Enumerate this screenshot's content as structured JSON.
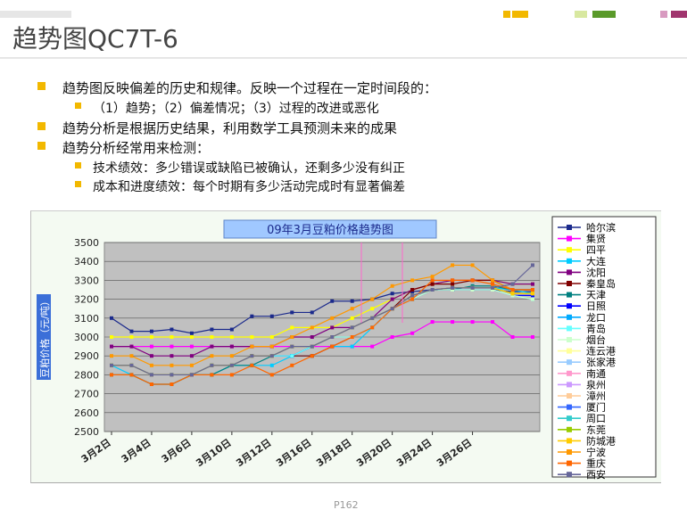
{
  "slide": {
    "title": "趋势图QC7T-6",
    "bullets": [
      {
        "text": "趋势图反映偏差的历史和规律。反映一个过程在一定时间段的：",
        "sub": [
          "（1）趋势；（2）偏差情况；（3）过程的改进或恶化"
        ]
      },
      {
        "text": "趋势分析是根据历史结果，利用数学工具预测未来的成果",
        "sub": []
      },
      {
        "text": "趋势分析经常用来检测：",
        "sub": [
          "技术绩效：多少错误或缺陷已被确认，还剩多少没有纠正",
          "成本和进度绩效：每个时期有多少活动完成时有显著偏差"
        ]
      }
    ],
    "page_label": "P162",
    "accent_colors": [
      "#f2b800",
      "#8cc63f",
      "#a0356e"
    ]
  },
  "chart_data": {
    "type": "line",
    "title": "09年3月豆粕价格趋势图",
    "ylabel": "豆粕价格（元/吨）",
    "xlabel": "",
    "ylim": [
      2500,
      3500
    ],
    "yticks": [
      2500,
      2600,
      2700,
      2800,
      2900,
      3000,
      3100,
      3200,
      3300,
      3400,
      3500
    ],
    "grid": true,
    "legend_position": "right",
    "x_tick_labels": [
      "3月2日",
      "3月4日",
      "3月6日",
      "3月10日",
      "3月12日",
      "3月16日",
      "3月18日",
      "3月20日",
      "3月24日",
      "3月26日"
    ],
    "x_tick_index": [
      0,
      2,
      4,
      6,
      8,
      10,
      12,
      14,
      16,
      18
    ],
    "series": [
      {
        "name": "哈尔滨",
        "color": "#1b2a8c",
        "values": [
          3100,
          3030,
          3030,
          3040,
          3020,
          3040,
          3040,
          3110,
          3110,
          3130,
          3130,
          3190,
          3190,
          3200,
          3230,
          3240,
          3250,
          3250,
          3250,
          3250,
          3240,
          3240
        ]
      },
      {
        "name": "集贤",
        "color": "#ff00ff",
        "values": [
          2950,
          2950,
          2950,
          2950,
          2950,
          2950,
          2950,
          2950,
          2950,
          2950,
          2950,
          2950,
          2950,
          2950,
          3000,
          3020,
          3080,
          3080,
          3080,
          3080,
          3000,
          3000
        ]
      },
      {
        "name": "四平",
        "color": "#ffff00",
        "values": [
          3000,
          3000,
          3000,
          3000,
          3000,
          3000,
          3000,
          3000,
          3000,
          3050,
          3050,
          3050,
          3100,
          3150,
          3200,
          3250,
          3280,
          3300,
          3300,
          3300,
          3280,
          3280
        ]
      },
      {
        "name": "大连",
        "color": "#00ccff",
        "values": [
          2850,
          2800,
          2750,
          2750,
          2800,
          2800,
          2850,
          2850,
          2850,
          2900,
          2900,
          2950,
          2950,
          3050,
          3150,
          3200,
          3250,
          3260,
          3260,
          3260,
          3250,
          3230
        ]
      },
      {
        "name": "沈阳",
        "color": "#800080",
        "values": [
          2950,
          2950,
          2900,
          2900,
          2900,
          2950,
          2950,
          2950,
          2950,
          3000,
          3000,
          3050,
          3050,
          3100,
          3200,
          3250,
          3280,
          3300,
          3300,
          3300,
          3280,
          3280
        ]
      },
      {
        "name": "秦皇岛",
        "color": "#800000",
        "values": [
          2850,
          2850,
          2800,
          2800,
          2800,
          2850,
          2850,
          2900,
          2900,
          2900,
          2900,
          2950,
          3000,
          3050,
          3150,
          3250,
          3280,
          3280,
          3300,
          3300,
          3250,
          3250
        ]
      },
      {
        "name": "天津",
        "color": "#008080",
        "values": [
          2800,
          2800,
          2750,
          2750,
          2800,
          2800,
          2850,
          2850,
          2900,
          2900,
          2950,
          3000,
          3000,
          3050,
          3150,
          3200,
          3250,
          3250,
          3270,
          3270,
          3250,
          3250
        ]
      },
      {
        "name": "日照",
        "color": "#0000ff",
        "values": [
          2850,
          2850,
          2800,
          2800,
          2800,
          2850,
          2850,
          2900,
          2900,
          2900,
          2950,
          3000,
          3000,
          3050,
          3150,
          3200,
          3250,
          3250,
          3250,
          3250,
          3220,
          3220
        ]
      },
      {
        "name": "龙口",
        "color": "#00aaff",
        "values": [
          2850,
          2850,
          2800,
          2800,
          2800,
          2850,
          2850,
          2900,
          2900,
          2900,
          2950,
          3000,
          3000,
          3050,
          3150,
          3200,
          3250,
          3250,
          3250,
          3250,
          3220,
          3200
        ]
      },
      {
        "name": "青岛",
        "color": "#66ffff",
        "values": [
          2850,
          2850,
          2800,
          2800,
          2800,
          2850,
          2850,
          2900,
          2900,
          2900,
          2950,
          3000,
          3000,
          3050,
          3150,
          3200,
          3250,
          3250,
          3250,
          3250,
          3220,
          3200
        ]
      },
      {
        "name": "烟台",
        "color": "#ccffcc",
        "values": [
          2850,
          2850,
          2800,
          2800,
          2800,
          2850,
          2850,
          2900,
          2900,
          2950,
          2950,
          3000,
          3000,
          3050,
          3150,
          3200,
          3250,
          3250,
          3250,
          3250,
          3220,
          3200
        ]
      },
      {
        "name": "连云港",
        "color": "#ffff99",
        "values": [
          2850,
          2850,
          2800,
          2800,
          2800,
          2850,
          2850,
          2900,
          2900,
          2950,
          2950,
          3000,
          3050,
          3100,
          3150,
          3220,
          3250,
          3260,
          3260,
          3260,
          3230,
          3230
        ]
      },
      {
        "name": "张家港",
        "color": "#99ccff",
        "values": [
          2850,
          2850,
          2800,
          2800,
          2800,
          2850,
          2850,
          2900,
          2900,
          2950,
          2950,
          3000,
          3050,
          3100,
          3150,
          3220,
          3250,
          3260,
          3260,
          3260,
          3230,
          3230
        ]
      },
      {
        "name": "南通",
        "color": "#ff99cc",
        "values": [
          2850,
          2850,
          2800,
          2800,
          2800,
          2850,
          2850,
          2900,
          2900,
          2950,
          2950,
          3000,
          3050,
          3100,
          3150,
          3220,
          3250,
          3260,
          3260,
          3260,
          3230,
          3230
        ]
      },
      {
        "name": "泉州",
        "color": "#cc99ff",
        "values": [
          2850,
          2850,
          2800,
          2800,
          2800,
          2850,
          2850,
          2900,
          2900,
          2950,
          2950,
          3000,
          3050,
          3100,
          3150,
          3220,
          3250,
          3260,
          3260,
          3260,
          3230,
          3230
        ]
      },
      {
        "name": "漳州",
        "color": "#ffcc99",
        "values": [
          2850,
          2850,
          2800,
          2800,
          2800,
          2850,
          2850,
          2900,
          2900,
          2950,
          2950,
          3000,
          3050,
          3100,
          3150,
          3220,
          3250,
          3260,
          3260,
          3260,
          3230,
          3230
        ]
      },
      {
        "name": "厦门",
        "color": "#3366ff",
        "values": [
          2850,
          2850,
          2800,
          2800,
          2800,
          2850,
          2850,
          2900,
          2900,
          2950,
          2950,
          3000,
          3050,
          3100,
          3150,
          3220,
          3250,
          3260,
          3260,
          3260,
          3230,
          3230
        ]
      },
      {
        "name": "周口",
        "color": "#33cccc",
        "values": [
          2850,
          2850,
          2800,
          2800,
          2800,
          2850,
          2850,
          2900,
          2900,
          2950,
          2950,
          3000,
          3050,
          3100,
          3150,
          3220,
          3250,
          3260,
          3260,
          3260,
          3230,
          3230
        ]
      },
      {
        "name": "东莞",
        "color": "#99cc00",
        "values": [
          2850,
          2850,
          2800,
          2800,
          2800,
          2850,
          2850,
          2900,
          2900,
          2950,
          2950,
          3000,
          3050,
          3100,
          3150,
          3220,
          3250,
          3260,
          3260,
          3260,
          3230,
          3230
        ]
      },
      {
        "name": "防城港",
        "color": "#ffcc00",
        "values": [
          2850,
          2850,
          2800,
          2800,
          2800,
          2850,
          2850,
          2900,
          2900,
          2950,
          2950,
          3000,
          3050,
          3100,
          3150,
          3220,
          3250,
          3260,
          3260,
          3260,
          3230,
          3230
        ]
      },
      {
        "name": "宁波",
        "color": "#ff9900",
        "values": [
          2900,
          2900,
          2850,
          2850,
          2850,
          2900,
          2900,
          2950,
          2950,
          3000,
          3050,
          3100,
          3150,
          3200,
          3270,
          3300,
          3320,
          3380,
          3380,
          3300,
          3250,
          3250
        ]
      },
      {
        "name": "重庆",
        "color": "#ff6600",
        "values": [
          2800,
          2800,
          2750,
          2750,
          2800,
          2800,
          2800,
          2850,
          2800,
          2850,
          2900,
          2950,
          3000,
          3050,
          3150,
          3200,
          3300,
          3300,
          3300,
          3280,
          3250,
          3250
        ]
      },
      {
        "name": "西安",
        "color": "#666699",
        "values": [
          2850,
          2850,
          2800,
          2800,
          2800,
          2850,
          2850,
          2900,
          2900,
          2950,
          2950,
          3000,
          3050,
          3100,
          3150,
          3220,
          3250,
          3260,
          3260,
          3260,
          3280,
          3380
        ]
      }
    ]
  }
}
